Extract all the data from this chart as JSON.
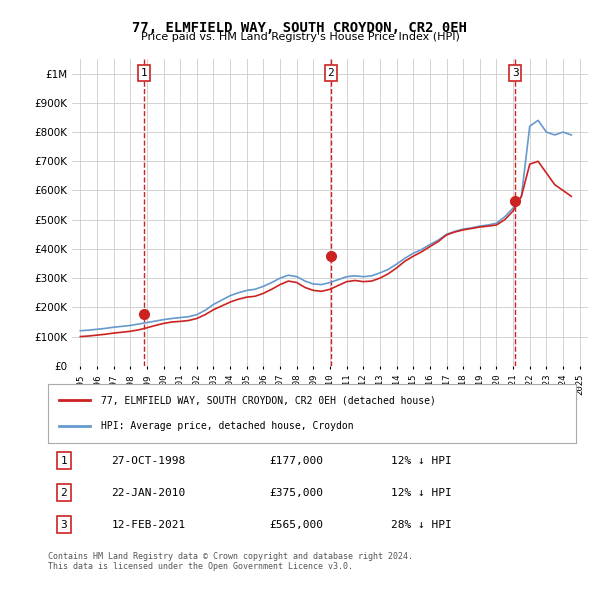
{
  "title": "77, ELMFIELD WAY, SOUTH CROYDON, CR2 0EH",
  "subtitle": "Price paid vs. HM Land Registry's House Price Index (HPI)",
  "ylabel_ticks": [
    "£0",
    "£100K",
    "£200K",
    "£300K",
    "£400K",
    "£500K",
    "£600K",
    "£700K",
    "£800K",
    "£900K",
    "£1M"
  ],
  "ytick_values": [
    0,
    100000,
    200000,
    300000,
    400000,
    500000,
    600000,
    700000,
    800000,
    900000,
    1000000
  ],
  "ylim": [
    0,
    1050000
  ],
  "sale_dates": [
    1998.82,
    2010.06,
    2021.12
  ],
  "sale_prices": [
    177000,
    375000,
    565000
  ],
  "sale_labels": [
    "1",
    "2",
    "3"
  ],
  "vline_dates": [
    1998.82,
    2010.06,
    2021.12
  ],
  "hpi_color": "#6699cc",
  "price_color": "#cc2222",
  "vline_color": "#cc2222",
  "background_color": "#ffffff",
  "grid_color": "#cccccc",
  "legend_label_price": "77, ELMFIELD WAY, SOUTH CROYDON, CR2 0EH (detached house)",
  "legend_label_hpi": "HPI: Average price, detached house, Croydon",
  "table_entries": [
    {
      "label": "1",
      "date": "27-OCT-1998",
      "price": "£177,000",
      "hpi": "12% ↓ HPI"
    },
    {
      "label": "2",
      "date": "22-JAN-2010",
      "price": "£375,000",
      "hpi": "12% ↓ HPI"
    },
    {
      "label": "3",
      "date": "12-FEB-2021",
      "price": "£565,000",
      "hpi": "28% ↓ HPI"
    }
  ],
  "footer": "Contains HM Land Registry data © Crown copyright and database right 2024.\nThis data is licensed under the Open Government Licence v3.0.",
  "hpi_years": [
    1995,
    1995.5,
    1996,
    1996.5,
    1997,
    1997.5,
    1998,
    1998.5,
    1999,
    1999.5,
    2000,
    2000.5,
    2001,
    2001.5,
    2002,
    2002.5,
    2003,
    2003.5,
    2004,
    2004.5,
    2005,
    2005.5,
    2006,
    2006.5,
    2007,
    2007.5,
    2008,
    2008.5,
    2009,
    2009.5,
    2010,
    2010.5,
    2011,
    2011.5,
    2012,
    2012.5,
    2013,
    2013.5,
    2014,
    2014.5,
    2015,
    2015.5,
    2016,
    2016.5,
    2017,
    2017.5,
    2018,
    2018.5,
    2019,
    2019.5,
    2020,
    2020.5,
    2021,
    2021.5,
    2022,
    2022.5,
    2023,
    2023.5,
    2024,
    2024.5
  ],
  "hpi_values": [
    120000,
    122000,
    125000,
    128000,
    132000,
    135000,
    138000,
    143000,
    148000,
    153000,
    158000,
    162000,
    165000,
    168000,
    175000,
    190000,
    210000,
    225000,
    240000,
    250000,
    258000,
    262000,
    272000,
    285000,
    300000,
    310000,
    305000,
    290000,
    280000,
    278000,
    285000,
    295000,
    305000,
    308000,
    305000,
    308000,
    318000,
    330000,
    348000,
    368000,
    385000,
    398000,
    415000,
    430000,
    450000,
    460000,
    468000,
    472000,
    478000,
    482000,
    488000,
    510000,
    540000,
    580000,
    820000,
    840000,
    800000,
    790000,
    800000,
    790000
  ],
  "price_years": [
    1995,
    1995.5,
    1996,
    1996.5,
    1997,
    1997.5,
    1998,
    1998.5,
    1999,
    1999.5,
    2000,
    2000.5,
    2001,
    2001.5,
    2002,
    2002.5,
    2003,
    2003.5,
    2004,
    2004.5,
    2005,
    2005.5,
    2006,
    2006.5,
    2007,
    2007.5,
    2008,
    2008.5,
    2009,
    2009.5,
    2010,
    2010.5,
    2011,
    2011.5,
    2012,
    2012.5,
    2013,
    2013.5,
    2014,
    2014.5,
    2015,
    2015.5,
    2016,
    2016.5,
    2017,
    2017.5,
    2018,
    2018.5,
    2019,
    2019.5,
    2020,
    2020.5,
    2021,
    2021.5,
    2022,
    2022.5,
    2023,
    2023.5,
    2024,
    2024.5
  ],
  "price_values": [
    100000,
    102000,
    105000,
    108000,
    112000,
    115000,
    118000,
    123000,
    130000,
    138000,
    145000,
    150000,
    152000,
    155000,
    162000,
    175000,
    192000,
    205000,
    218000,
    228000,
    235000,
    238000,
    248000,
    262000,
    278000,
    290000,
    285000,
    268000,
    258000,
    255000,
    262000,
    275000,
    288000,
    292000,
    288000,
    290000,
    300000,
    315000,
    335000,
    358000,
    375000,
    390000,
    408000,
    425000,
    448000,
    458000,
    465000,
    470000,
    475000,
    478000,
    482000,
    500000,
    530000,
    580000,
    690000,
    700000,
    660000,
    620000,
    600000,
    580000
  ]
}
